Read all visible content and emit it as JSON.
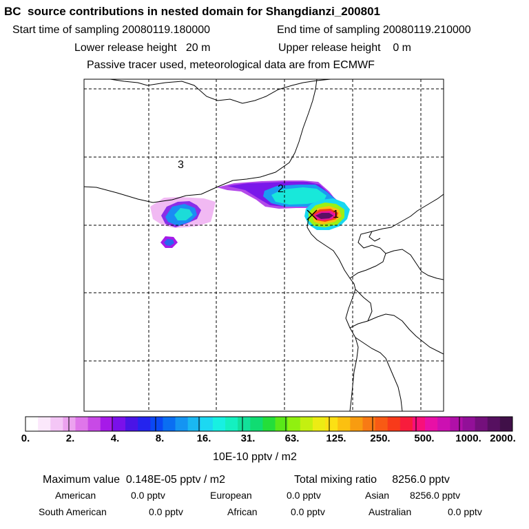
{
  "header": {
    "title": "BC  source contributions in nested domain for Shangdianzi_200801",
    "start_label": "Start time of sampling 20080119.180000",
    "end_label": "End time of sampling 20080119.210000",
    "lower_height": "Lower release height   20 m",
    "upper_height": "Upper release height    0 m",
    "tracer_note": "Passive tracer used, meteorological data are from ECMWF"
  },
  "map": {
    "markers": [
      "1",
      "2",
      "3"
    ],
    "receptor_icon": "x-receptor-marker"
  },
  "colorbar": {
    "labels": [
      "0.",
      "2.",
      "4.",
      "8.",
      "16.",
      "31.",
      "63.",
      "125.",
      "250.",
      "500.",
      "1000.",
      "2000."
    ],
    "units": "10E-10 pptv / m2",
    "colors": [
      "#ffffff",
      "#fbe8fb",
      "#f4c6f6",
      "#eca2ef",
      "#df76ea",
      "#c84ae6",
      "#a61ae8",
      "#7a10ea",
      "#4a14e6",
      "#2424ee",
      "#0a48f4",
      "#0a6ef2",
      "#1494f2",
      "#1ab8f2",
      "#1cd8f2",
      "#18f0e2",
      "#14f0c0",
      "#12e09a",
      "#10dc72",
      "#24de3a",
      "#5ae818",
      "#90f010",
      "#c4f010",
      "#ecec14",
      "#fce014",
      "#fcc010",
      "#f89c10",
      "#f87a14",
      "#f85a14",
      "#f83a1a",
      "#f81c3c",
      "#f8107a",
      "#e810a6",
      "#cc10b2",
      "#b010a8",
      "#921098",
      "#74107c",
      "#561060",
      "#401048"
    ]
  },
  "footer": {
    "max_label": "Maximum value  0.148E-05 pptv / m2",
    "total_label": "Total mixing ratio     8256.0 pptv",
    "regions": [
      {
        "name": "American",
        "value": "0.0 pptv"
      },
      {
        "name": "European",
        "value": "0.0 pptv"
      },
      {
        "name": "Asian",
        "value": "8256.0 pptv"
      },
      {
        "name": "South American",
        "value": "0.0 pptv"
      },
      {
        "name": "African",
        "value": "0.0 pptv"
      },
      {
        "name": "Australian",
        "value": "0.0 pptv"
      }
    ]
  }
}
